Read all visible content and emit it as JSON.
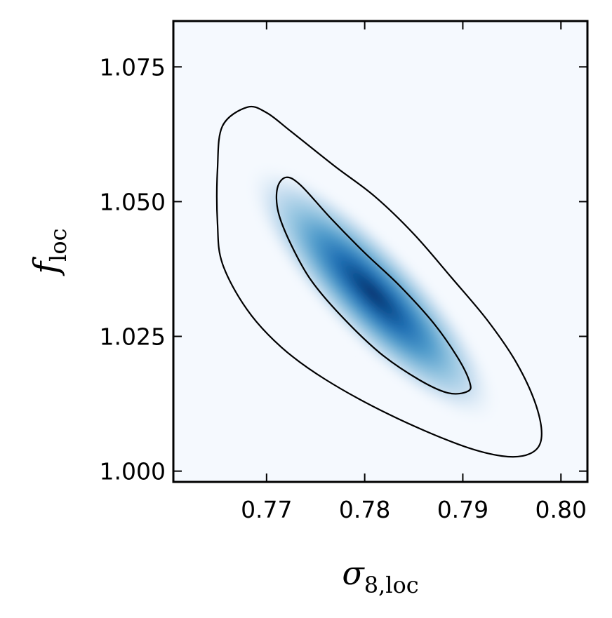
{
  "chart_data": {
    "type": "contour",
    "title": "",
    "xlabel": "σ",
    "xlabel_sub": "8,loc",
    "ylabel": "f",
    "ylabel_sub": "loc",
    "xlim": [
      0.7605,
      0.8027
    ],
    "ylim": [
      0.998,
      1.0835
    ],
    "x_ticks": [
      0.77,
      0.78,
      0.79,
      0.8
    ],
    "x_tick_labels": [
      "0.77",
      "0.78",
      "0.79",
      "0.80"
    ],
    "y_ticks": [
      1.0,
      1.025,
      1.05,
      1.075
    ],
    "y_tick_labels": [
      "1.000",
      "1.025",
      "1.050",
      "1.075"
    ],
    "grid": false,
    "colormap": "Blues",
    "background_color": "#f5f9fe",
    "peak_color": "#08306b",
    "density_peak": {
      "x": 0.7808,
      "y": 1.033
    },
    "contour_levels": [
      {
        "name": "inner",
        "points": [
          [
            0.772,
            1.0545
          ],
          [
            0.7735,
            1.053
          ],
          [
            0.7765,
            1.047
          ],
          [
            0.78,
            1.0405
          ],
          [
            0.7835,
            1.0345
          ],
          [
            0.787,
            1.0275
          ],
          [
            0.7895,
            1.021
          ],
          [
            0.7907,
            1.0165
          ],
          [
            0.7905,
            1.0148
          ],
          [
            0.7885,
            1.0145
          ],
          [
            0.7855,
            1.017
          ],
          [
            0.7815,
            1.022
          ],
          [
            0.7775,
            1.029
          ],
          [
            0.7745,
            1.0355
          ],
          [
            0.7725,
            1.042
          ],
          [
            0.7712,
            1.048
          ],
          [
            0.7711,
            1.0525
          ]
        ]
      },
      {
        "name": "outer",
        "points": [
          [
            0.768,
            1.0675
          ],
          [
            0.77,
            1.0665
          ],
          [
            0.7725,
            1.063
          ],
          [
            0.777,
            1.0565
          ],
          [
            0.781,
            1.051
          ],
          [
            0.785,
            1.044
          ],
          [
            0.7888,
            1.036
          ],
          [
            0.7925,
            1.028
          ],
          [
            0.7955,
            1.02
          ],
          [
            0.7975,
            1.012
          ],
          [
            0.798,
            1.006
          ],
          [
            0.7968,
            1.0032
          ],
          [
            0.794,
            1.0028
          ],
          [
            0.7895,
            1.005
          ],
          [
            0.7825,
            1.0105
          ],
          [
            0.776,
            1.017
          ],
          [
            0.7715,
            1.023
          ],
          [
            0.768,
            1.03
          ],
          [
            0.7655,
            1.0385
          ],
          [
            0.765,
            1.046
          ],
          [
            0.765,
            1.056
          ],
          [
            0.7655,
            1.064
          ]
        ]
      }
    ]
  }
}
